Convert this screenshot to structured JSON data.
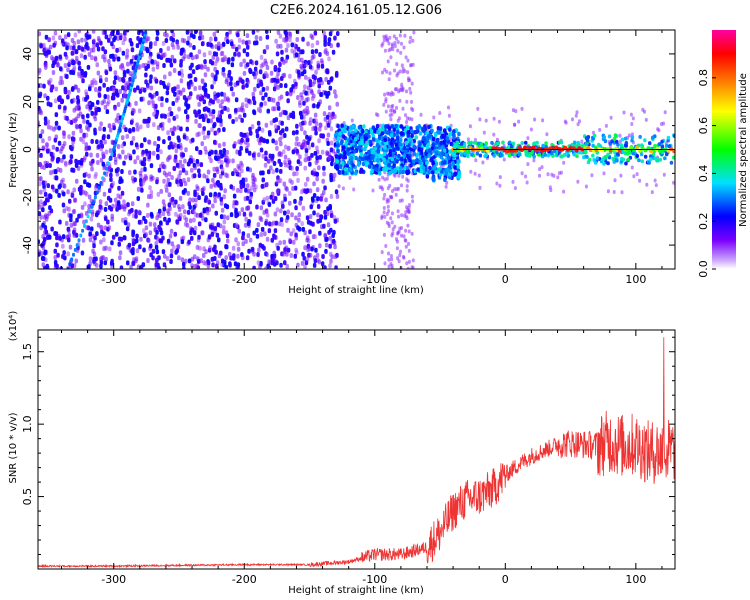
{
  "title": "C2E6.2024.161.05.12.G06",
  "chart_data": [
    {
      "type": "heatmap",
      "xlabel": "Height of straight line (km)",
      "ylabel": "Frequency (Hz)",
      "xlim": [
        -358,
        130
      ],
      "ylim": [
        -50,
        50
      ],
      "x_ticks": [
        -300,
        -200,
        -100,
        0,
        100
      ],
      "x_tick_labels": [
        "-300",
        "-200",
        "-100",
        "0",
        "100"
      ],
      "y_ticks": [
        -40,
        -20,
        0,
        20,
        40
      ],
      "y_tick_labels": [
        "-40",
        "-20",
        "0",
        "20",
        "40"
      ],
      "colorbar": {
        "label": "Normalized spectral amplitude",
        "range": [
          0,
          1
        ],
        "ticks": [
          0.0,
          0.2,
          0.4,
          0.6,
          0.8
        ],
        "tick_labels": [
          "0.0",
          "0.2",
          "0.4",
          "0.6",
          "0.8"
        ],
        "colormap": [
          "#ffffff",
          "#7a00ff",
          "#0000ff",
          "#00e0ff",
          "#00ff00",
          "#ffff00",
          "#ff8000",
          "#ff0000",
          "#ff00a0"
        ]
      },
      "features": {
        "diagonal_trace": [
          [
            -335,
            -50
          ],
          [
            -300,
            0
          ],
          [
            -287,
            25
          ],
          [
            -275,
            50
          ]
        ],
        "center_line": [
          [
            -40,
            0
          ],
          [
            130,
            0
          ]
        ]
      }
    },
    {
      "type": "line",
      "xlabel": "Height of straight line (km)",
      "ylabel": "SNR (10 * v/v)",
      "y_multiplier": "(x10⁴)",
      "xlim": [
        -358,
        130
      ],
      "ylim": [
        0,
        1.65
      ],
      "x_ticks": [
        -300,
        -200,
        -100,
        0,
        100
      ],
      "x_tick_labels": [
        "-300",
        "-200",
        "-100",
        "0",
        "100"
      ],
      "y_ticks": [
        0.5,
        1.0,
        1.5
      ],
      "y_tick_labels": [
        "0.5",
        "1.0",
        "1.5"
      ],
      "series": [
        {
          "color": "#ee3333",
          "x": [
            -358,
            -300,
            -200,
            -150,
            -120,
            -100,
            -80,
            -60,
            -50,
            -40,
            -30,
            -20,
            -10,
            0,
            10,
            20,
            30,
            40,
            50,
            60,
            70,
            80,
            90,
            100,
            110,
            120,
            130
          ],
          "y": [
            0.02,
            0.02,
            0.03,
            0.03,
            0.05,
            0.1,
            0.1,
            0.15,
            0.25,
            0.4,
            0.48,
            0.5,
            0.55,
            0.65,
            0.72,
            0.78,
            0.82,
            0.86,
            0.87,
            0.86,
            0.85,
            0.88,
            0.85,
            0.86,
            0.8,
            0.82,
            0.82
          ]
        }
      ]
    }
  ]
}
